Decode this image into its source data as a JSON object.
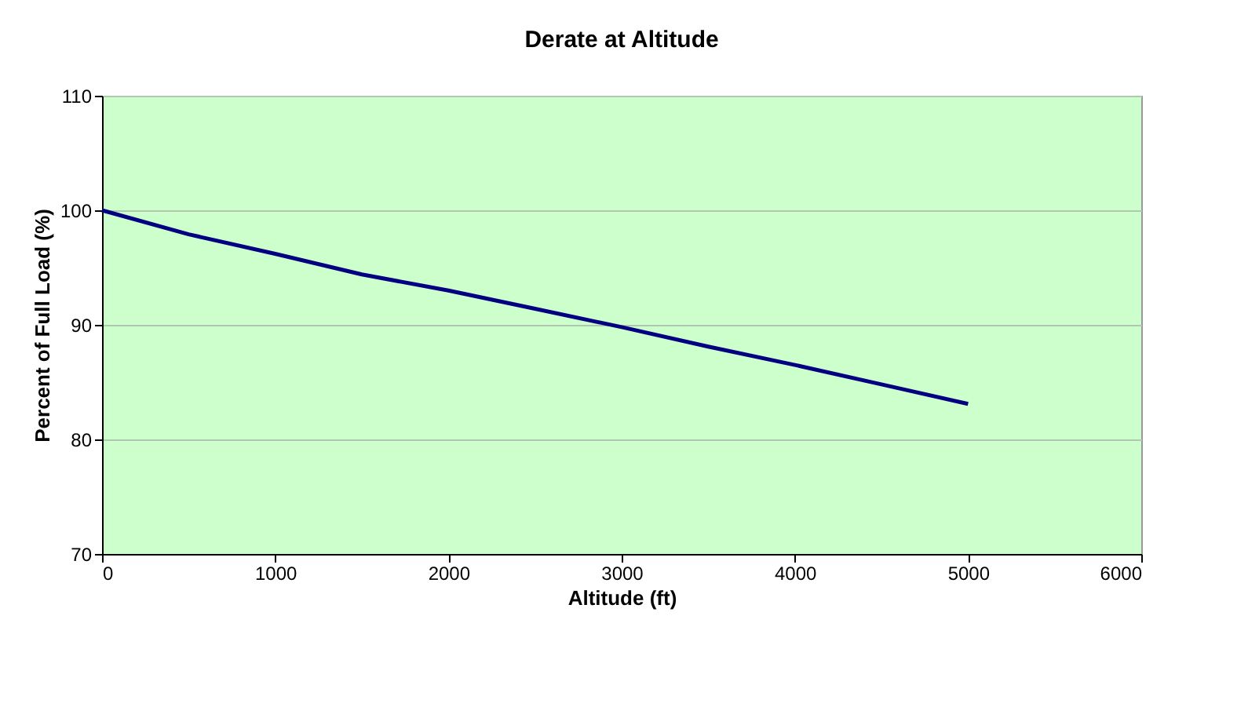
{
  "chart_data": {
    "type": "line",
    "title": "Derate at Altitude",
    "xlabel": "Altitude (ft)",
    "ylabel": "Percent of Full Load (%)",
    "x": [
      0,
      500,
      1000,
      1500,
      2000,
      2500,
      3000,
      3500,
      4000,
      4500,
      5000
    ],
    "series": [
      {
        "color": "#000080",
        "values": [
          100,
          97.9,
          96.2,
          94.4,
          93.0,
          91.4,
          89.8,
          88.1,
          86.5,
          84.8,
          83.1
        ]
      }
    ],
    "xlim": [
      0,
      6000
    ],
    "xticks": [
      0,
      1000,
      2000,
      3000,
      4000,
      5000,
      6000
    ],
    "ylim": [
      70,
      110
    ],
    "yticks": [
      70,
      80,
      90,
      100,
      110
    ],
    "grid": "y",
    "marker": "none",
    "line_style": "solid"
  }
}
